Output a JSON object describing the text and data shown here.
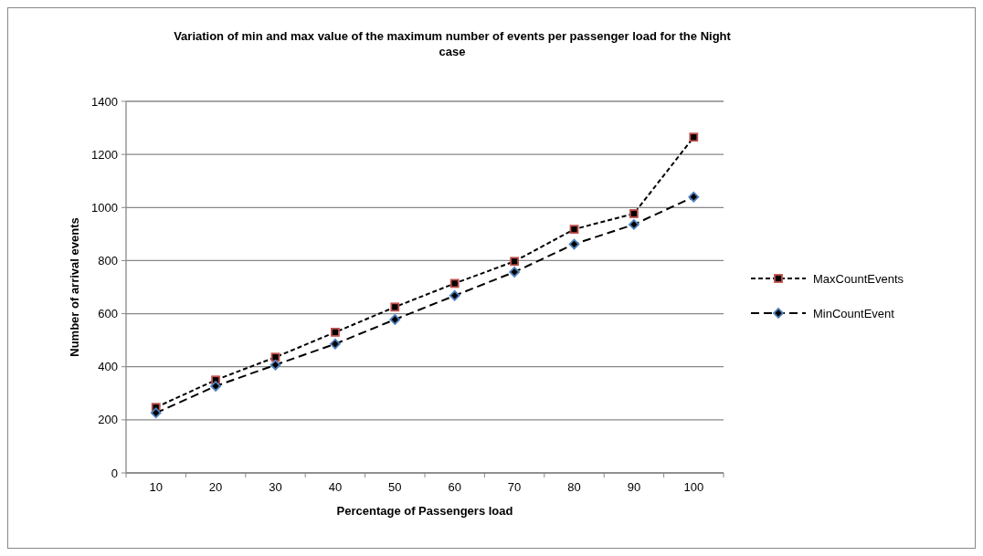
{
  "chart_data": {
    "type": "line",
    "title": "Variation of min and max value of the maximum number of  events  per passenger load for the Night case",
    "xlabel": "Percentage of Passengers load",
    "ylabel": "Number of arrival events",
    "categories": [
      "10",
      "20",
      "30",
      "40",
      "50",
      "60",
      "70",
      "80",
      "90",
      "100"
    ],
    "series": [
      {
        "name": "MaxCountEvents",
        "color": "#c0504d",
        "marker": "square",
        "line_style": "dashed",
        "values": [
          247,
          350,
          436,
          530,
          625,
          714,
          797,
          918,
          977,
          1265
        ]
      },
      {
        "name": "MinCountEvent",
        "color": "#4f81bd",
        "marker": "diamond",
        "line_style": "dashed",
        "values": [
          226,
          327,
          407,
          486,
          578,
          668,
          757,
          862,
          936,
          1040
        ]
      }
    ],
    "ylim": [
      0,
      1400
    ],
    "yticks": [
      0,
      200,
      400,
      600,
      800,
      1000,
      1200,
      1400
    ],
    "grid": "y",
    "legend": "right"
  }
}
